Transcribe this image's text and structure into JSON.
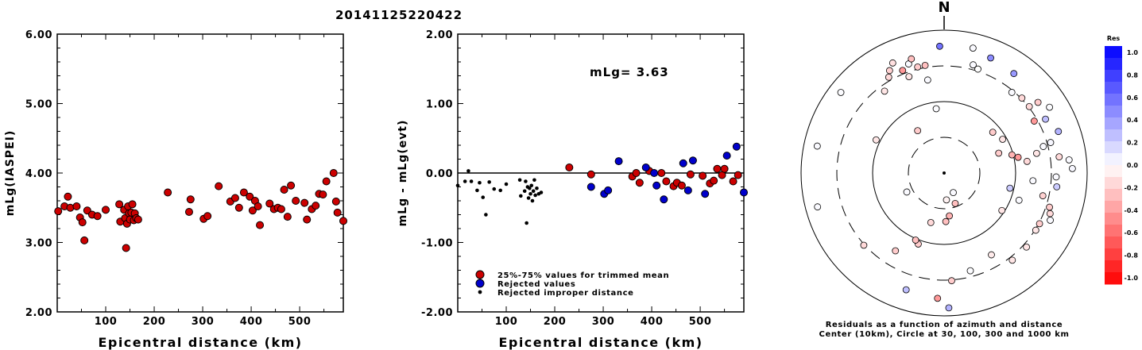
{
  "page_title": "20141125220422",
  "colors": {
    "red": "#cc0000",
    "blue": "#0000cc",
    "black": "#000000"
  },
  "chart_data": [
    {
      "type": "scatter",
      "xlabel": "Epicentral distance (km)",
      "ylabel": "mLg(IASPEI)",
      "xlim": [
        0,
        590
      ],
      "ylim": [
        2.0,
        6.0
      ],
      "xticks": [
        "100",
        "200",
        "300",
        "400",
        "500"
      ],
      "yticks": [
        "2.00",
        "3.00",
        "4.00",
        "5.00",
        "6.00"
      ],
      "series": [
        {
          "color": "#cc0000",
          "points": [
            [
              2,
              3.45
            ],
            [
              15,
              3.52
            ],
            [
              22,
              3.66
            ],
            [
              27,
              3.5
            ],
            [
              40,
              3.52
            ],
            [
              47,
              3.36
            ],
            [
              52,
              3.29
            ],
            [
              56,
              3.03
            ],
            [
              62,
              3.46
            ],
            [
              72,
              3.4
            ],
            [
              83,
              3.38
            ],
            [
              100,
              3.47
            ],
            [
              128,
              3.55
            ],
            [
              130,
              3.3
            ],
            [
              138,
              3.47
            ],
            [
              140,
              3.35
            ],
            [
              142,
              2.92
            ],
            [
              144,
              3.27
            ],
            [
              146,
              3.52
            ],
            [
              148,
              3.42
            ],
            [
              150,
              3.33
            ],
            [
              153,
              3.43
            ],
            [
              155,
              3.55
            ],
            [
              158,
              3.32
            ],
            [
              160,
              3.42
            ],
            [
              163,
              3.35
            ],
            [
              167,
              3.33
            ],
            [
              228,
              3.72
            ],
            [
              272,
              3.44
            ],
            [
              275,
              3.62
            ],
            [
              302,
              3.34
            ],
            [
              310,
              3.38
            ],
            [
              333,
              3.81
            ],
            [
              357,
              3.59
            ],
            [
              367,
              3.64
            ],
            [
              375,
              3.5
            ],
            [
              385,
              3.72
            ],
            [
              397,
              3.66
            ],
            [
              403,
              3.46
            ],
            [
              408,
              3.6
            ],
            [
              414,
              3.52
            ],
            [
              418,
              3.25
            ],
            [
              438,
              3.56
            ],
            [
              447,
              3.48
            ],
            [
              455,
              3.5
            ],
            [
              462,
              3.48
            ],
            [
              468,
              3.76
            ],
            [
              475,
              3.37
            ],
            [
              482,
              3.82
            ],
            [
              492,
              3.6
            ],
            [
              510,
              3.57
            ],
            [
              515,
              3.33
            ],
            [
              525,
              3.48
            ],
            [
              533,
              3.53
            ],
            [
              540,
              3.7
            ],
            [
              548,
              3.69
            ],
            [
              555,
              3.88
            ],
            [
              570,
              4.0
            ],
            [
              575,
              3.59
            ],
            [
              578,
              3.43
            ],
            [
              590,
              3.31
            ]
          ]
        }
      ]
    },
    {
      "type": "scatter",
      "xlabel": "Epicentral distance (km)",
      "ylabel": "mLg - mLg(evt)",
      "xlim": [
        0,
        590
      ],
      "ylim": [
        -2.0,
        2.0
      ],
      "xticks": [
        "100",
        "200",
        "300",
        "400",
        "500"
      ],
      "yticks": [
        "-2.00",
        "-1.00",
        "0.00",
        "1.00",
        "2.00"
      ],
      "annotation": "mLg= 3.63",
      "reference_line": 0.0,
      "legend": [
        "25%-75% values for trimmed mean",
        "Rejected values",
        "Rejected improper distance"
      ],
      "series": [
        {
          "name": "25%-75% values for trimmed mean",
          "color": "#cc0000",
          "points": [
            [
              230,
              0.08
            ],
            [
              275,
              -0.02
            ],
            [
              360,
              -0.05
            ],
            [
              368,
              0.0
            ],
            [
              375,
              -0.14
            ],
            [
              395,
              0.03
            ],
            [
              420,
              0.0
            ],
            [
              430,
              -0.12
            ],
            [
              445,
              -0.19
            ],
            [
              452,
              -0.14
            ],
            [
              462,
              -0.18
            ],
            [
              480,
              -0.02
            ],
            [
              505,
              -0.04
            ],
            [
              520,
              -0.15
            ],
            [
              528,
              -0.11
            ],
            [
              535,
              0.06
            ],
            [
              545,
              -0.03
            ],
            [
              550,
              0.06
            ],
            [
              568,
              -0.12
            ],
            [
              578,
              -0.03
            ]
          ]
        },
        {
          "name": "Rejected values",
          "color": "#0000cc",
          "points": [
            [
              275,
              -0.2
            ],
            [
              302,
              -0.3
            ],
            [
              310,
              -0.25
            ],
            [
              332,
              0.17
            ],
            [
              388,
              0.08
            ],
            [
              405,
              0.0
            ],
            [
              410,
              -0.18
            ],
            [
              425,
              -0.38
            ],
            [
              465,
              0.14
            ],
            [
              475,
              -0.25
            ],
            [
              485,
              0.18
            ],
            [
              510,
              -0.3
            ],
            [
              555,
              0.25
            ],
            [
              575,
              0.38
            ],
            [
              590,
              -0.28
            ]
          ]
        },
        {
          "name": "Rejected improper distance",
          "color": "#000000",
          "points": [
            [
              0,
              -0.18
            ],
            [
              15,
              -0.12
            ],
            [
              22,
              0.03
            ],
            [
              28,
              -0.12
            ],
            [
              40,
              -0.25
            ],
            [
              45,
              -0.14
            ],
            [
              52,
              -0.35
            ],
            [
              58,
              -0.6
            ],
            [
              65,
              -0.13
            ],
            [
              75,
              -0.23
            ],
            [
              88,
              -0.25
            ],
            [
              100,
              -0.16
            ],
            [
              128,
              -0.1
            ],
            [
              130,
              -0.33
            ],
            [
              138,
              -0.26
            ],
            [
              140,
              -0.12
            ],
            [
              142,
              -0.72
            ],
            [
              144,
              -0.2
            ],
            [
              146,
              -0.36
            ],
            [
              148,
              -0.22
            ],
            [
              150,
              -0.3
            ],
            [
              152,
              -0.18
            ],
            [
              154,
              -0.4
            ],
            [
              156,
              -0.26
            ],
            [
              158,
              -0.1
            ],
            [
              160,
              -0.32
            ],
            [
              163,
              -0.22
            ],
            [
              167,
              -0.3
            ],
            [
              172,
              -0.28
            ]
          ]
        }
      ]
    },
    {
      "type": "scatter",
      "subtype": "polar",
      "north_label": "N",
      "caption_line1": "Residuals as a function of azimuth and distance",
      "caption_line2": "Center (10km), Circle at 30, 100, 300 and 1000 km",
      "rings_km": [
        30,
        100,
        300,
        1000
      ],
      "colorbar": {
        "title": "Res",
        "ticks": [
          "1.0",
          "0.8",
          "0.6",
          "0.4",
          "0.2",
          "0.0",
          "-0.2",
          "-0.4",
          "-0.6",
          "-0.8",
          "-1.0"
        ],
        "range": [
          -1.0,
          1.0
        ]
      },
      "stations": [
        {
          "az": 358,
          "km": 940,
          "res": 0.55
        },
        {
          "az": 13,
          "km": 950,
          "res": 0.02
        },
        {
          "az": 22,
          "km": 920,
          "res": 0.45
        },
        {
          "az": 15,
          "km": 830,
          "res": 0.02
        },
        {
          "az": 18,
          "km": 810,
          "res": 0.0
        },
        {
          "az": 35,
          "km": 900,
          "res": 0.4
        },
        {
          "az": 40,
          "km": 780,
          "res": 0.02
        },
        {
          "az": 46,
          "km": 800,
          "res": -0.15
        },
        {
          "az": 53,
          "km": 870,
          "res": -0.2
        },
        {
          "az": 52,
          "km": 800,
          "res": -0.15
        },
        {
          "az": 60,
          "km": 770,
          "res": -0.4
        },
        {
          "az": 58,
          "km": 920,
          "res": 0.01
        },
        {
          "az": 62,
          "km": 850,
          "res": 0.25
        },
        {
          "az": 70,
          "km": 900,
          "res": 0.3
        },
        {
          "az": 75,
          "km": 760,
          "res": 0.02
        },
        {
          "az": 74,
          "km": 820,
          "res": 0.03
        },
        {
          "az": 78,
          "km": 700,
          "res": -0.1
        },
        {
          "az": 82,
          "km": 860,
          "res": -0.15
        },
        {
          "az": 84,
          "km": 930,
          "res": 0.02
        },
        {
          "az": 88,
          "km": 950,
          "res": 0.03
        },
        {
          "az": 92,
          "km": 830,
          "res": 0.02
        },
        {
          "az": 97,
          "km": 840,
          "res": 0.2
        },
        {
          "az": 103,
          "km": 750,
          "res": -0.18
        },
        {
          "az": 108,
          "km": 820,
          "res": -0.2
        },
        {
          "az": 111,
          "km": 840,
          "res": -0.15
        },
        {
          "az": 114,
          "km": 860,
          "res": 0.02
        },
        {
          "az": 118,
          "km": 800,
          "res": -0.2
        },
        {
          "az": 122,
          "km": 800,
          "res": -0.1
        },
        {
          "az": 132,
          "km": 820,
          "res": -0.1
        },
        {
          "az": 142,
          "km": 820,
          "res": -0.1
        },
        {
          "az": 150,
          "km": 700,
          "res": -0.08
        },
        {
          "az": 165,
          "km": 750,
          "res": 0.01
        },
        {
          "az": 176,
          "km": 800,
          "res": -0.2
        },
        {
          "az": 178,
          "km": 1000,
          "res": 0.3
        },
        {
          "az": 183,
          "km": 930,
          "res": -0.4
        },
        {
          "az": 198,
          "km": 910,
          "res": 0.25
        },
        {
          "az": 212,
          "km": 680,
          "res": -0.2
        },
        {
          "az": 228,
          "km": 800,
          "res": -0.15
        },
        {
          "az": 255,
          "km": 970,
          "res": 0.02
        },
        {
          "az": 282,
          "km": 960,
          "res": 0.02
        },
        {
          "az": 296,
          "km": 560,
          "res": -0.1
        },
        {
          "az": 308,
          "km": 970,
          "res": 0.01
        },
        {
          "az": 324,
          "km": 750,
          "res": -0.1
        },
        {
          "az": 330,
          "km": 820,
          "res": -0.15
        },
        {
          "az": 332,
          "km": 860,
          "res": -0.18
        },
        {
          "az": 335,
          "km": 900,
          "res": -0.12
        },
        {
          "az": 338,
          "km": 820,
          "res": -0.4
        },
        {
          "az": 340,
          "km": 760,
          "res": -0.1
        },
        {
          "az": 342,
          "km": 850,
          "res": 0.02
        },
        {
          "az": 344,
          "km": 880,
          "res": -0.25
        },
        {
          "az": 346,
          "km": 810,
          "res": -0.2
        },
        {
          "az": 350,
          "km": 810,
          "res": -0.25
        },
        {
          "az": 350,
          "km": 700,
          "res": 0.02
        },
        {
          "az": 160,
          "km": 240,
          "res": -0.25
        },
        {
          "az": 173,
          "km": 320,
          "res": -0.3
        },
        {
          "az": 178,
          "km": 360,
          "res": -0.25
        },
        {
          "az": 155,
          "km": 160,
          "res": 0.02
        },
        {
          "az": 175,
          "km": 200,
          "res": -0.05
        },
        {
          "az": 195,
          "km": 380,
          "res": -0.15
        },
        {
          "az": 200,
          "km": 560,
          "res": -0.2
        },
        {
          "az": 203,
          "km": 540,
          "res": -0.25
        },
        {
          "az": 243,
          "km": 310,
          "res": 0.02
        },
        {
          "az": 328,
          "km": 370,
          "res": -0.2
        },
        {
          "az": 353,
          "km": 480,
          "res": 0.01
        },
        {
          "az": 50,
          "km": 470,
          "res": -0.2
        },
        {
          "az": 60,
          "km": 500,
          "res": -0.1
        },
        {
          "az": 70,
          "km": 430,
          "res": -0.2
        },
        {
          "az": 75,
          "km": 520,
          "res": -0.3
        },
        {
          "az": 78,
          "km": 560,
          "res": -0.4
        },
        {
          "az": 82,
          "km": 620,
          "res": -0.15
        },
        {
          "az": 95,
          "km": 660,
          "res": 0.02
        },
        {
          "az": 103,
          "km": 500,
          "res": 0.2
        },
        {
          "az": 110,
          "km": 590,
          "res": 0.02
        },
        {
          "az": 123,
          "km": 510,
          "res": -0.1
        }
      ]
    }
  ]
}
